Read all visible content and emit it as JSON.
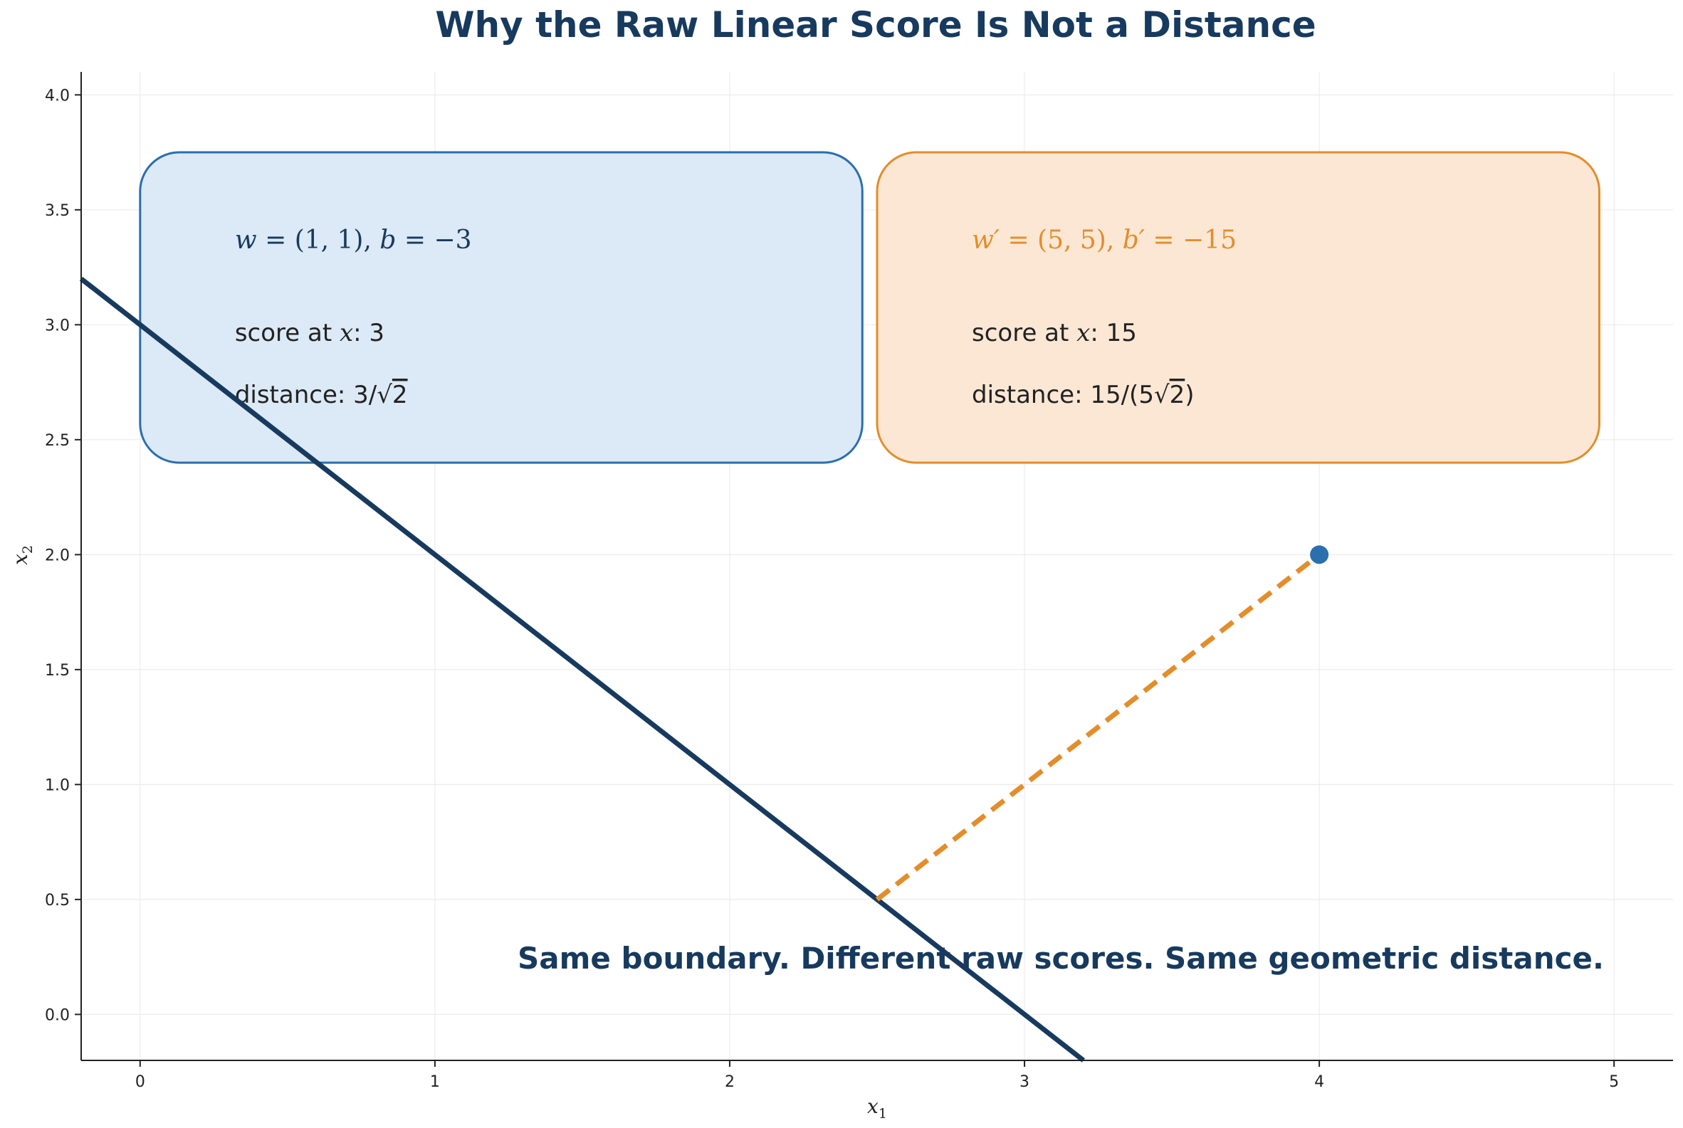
{
  "chart_data": {
    "type": "line",
    "title": "Why the Raw Linear Score Is Not a Distance",
    "xlabel_main": "x",
    "xlabel_sub": "1",
    "ylabel_main": "x",
    "ylabel_sub": "2",
    "xlim": [
      -0.2,
      5.2
    ],
    "ylim": [
      -0.2,
      4.1
    ],
    "x_ticks": [
      0,
      1,
      2,
      3,
      4,
      5
    ],
    "x_tick_labels": [
      "0",
      "1",
      "2",
      "3",
      "4",
      "5"
    ],
    "y_ticks": [
      0.0,
      0.5,
      1.0,
      1.5,
      2.0,
      2.5,
      3.0,
      3.5,
      4.0
    ],
    "y_tick_labels": [
      "0.0",
      "0.5",
      "1.0",
      "1.5",
      "2.0",
      "2.5",
      "3.0",
      "3.5",
      "4.0"
    ],
    "grid": true,
    "boundary": {
      "x": [
        -0.2,
        3.2
      ],
      "y": [
        3.2,
        -0.2
      ],
      "color": "#173a5e"
    },
    "point": {
      "x": 4,
      "y": 2,
      "color": "#2b6fae"
    },
    "projection": {
      "x": [
        2.5,
        4
      ],
      "y": [
        0.5,
        2
      ],
      "color": "#e38d2b"
    },
    "boxes": [
      {
        "x0": 0.0,
        "x1": 2.45,
        "y0": 2.4,
        "y1": 3.75,
        "fill": "#dce9f6",
        "stroke": "#2b6fae",
        "head_color": "#173a5e",
        "head_parts": [
          "w",
          " = (1, 1),  ",
          "b",
          " = −3"
        ],
        "score_parts": [
          "score at ",
          "x",
          ": 3"
        ],
        "distance_parts": [
          "distance: 3/",
          "√",
          "2"
        ]
      },
      {
        "x0": 2.5,
        "x1": 4.95,
        "y0": 2.4,
        "y1": 3.75,
        "fill": "#fbe7d4",
        "stroke": "#e38d2b",
        "head_color": "#e38d2b",
        "head_parts": [
          "w′",
          " = (5, 5),  ",
          "b′",
          " = −15"
        ],
        "score_parts": [
          "score at ",
          "x",
          ": 15"
        ],
        "distance_parts": [
          "distance: 15/(5",
          "√",
          "2",
          ")"
        ]
      }
    ],
    "annotation": "Same boundary. Different raw scores. Same geometric distance."
  }
}
